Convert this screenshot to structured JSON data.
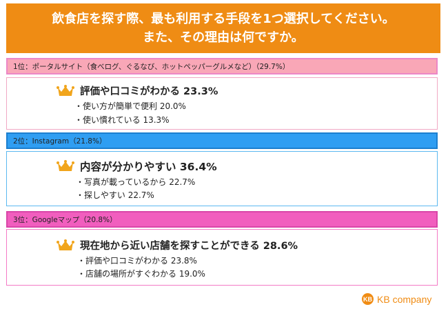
{
  "header": {
    "line1": "飲食店を探す際、最も利用する手段を1つ選択してください。",
    "line2": "また、その理由は何ですか。"
  },
  "rankings": [
    {
      "bar_label": "1位：ポータルサイト（食べログ、ぐるなび、ホットペッパーグルメなど）（29.7%）",
      "main": "評価や口コミがわかる 23.3%",
      "subs": [
        "・使い方が簡単で便利 20.0%",
        "・使い慣れている 13.3%"
      ],
      "bar_color": "#f9a7b7"
    },
    {
      "bar_label": "2位：Instagram（21.8%）",
      "main": "内容が分かりやすい 36.4%",
      "subs": [
        "・写真が載っているから 22.7%",
        "・探しやすい 22.7%"
      ],
      "bar_color": "#2f9ef2"
    },
    {
      "bar_label": "3位：Googleマップ（20.8%）",
      "main": "現在地から近い店舗を探すことができる 28.6%",
      "subs": [
        "・評価や口コミがわかる 23.8%",
        "・店舗の場所がすぐわかる 19.0%"
      ],
      "bar_color": "#f15ebe"
    }
  ],
  "icons": {
    "crown": "crown-icon",
    "logo": "kb-logo-icon"
  },
  "logo": {
    "mark": "KB",
    "text": "KB company"
  },
  "colors": {
    "header_bg": "#ef8c14",
    "crown": "#f1a51c"
  }
}
